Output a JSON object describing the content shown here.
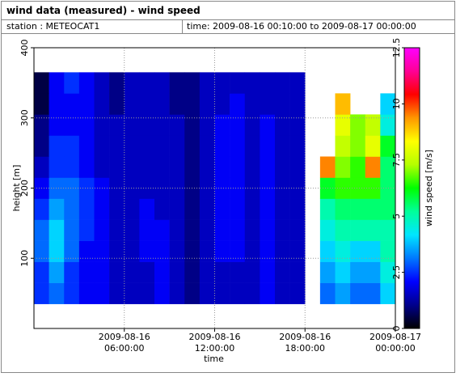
{
  "header": {
    "title": "wind data (measured) - wind speed",
    "station": "station : METEOCAT1",
    "time": "time: 2009-08-16 00:10:00 to 2009-08-17 00:00:00"
  },
  "chart_data": {
    "type": "heatmap",
    "x_label": "time",
    "y_label": "height [m]",
    "colorbar_label": "wind speed [m/s]",
    "x": [
      "2009-08-16 00:00:00",
      "2009-08-16 01:00:00",
      "2009-08-16 02:00:00",
      "2009-08-16 03:00:00",
      "2009-08-16 04:00:00",
      "2009-08-16 05:00:00",
      "2009-08-16 06:00:00",
      "2009-08-16 07:00:00",
      "2009-08-16 08:00:00",
      "2009-08-16 09:00:00",
      "2009-08-16 10:00:00",
      "2009-08-16 11:00:00",
      "2009-08-16 12:00:00",
      "2009-08-16 13:00:00",
      "2009-08-16 14:00:00",
      "2009-08-16 15:00:00",
      "2009-08-16 16:00:00",
      "2009-08-16 17:00:00",
      "2009-08-16 18:00:00",
      "2009-08-16 19:00:00",
      "2009-08-16 20:00:00",
      "2009-08-16 21:00:00",
      "2009-08-16 22:00:00",
      "2009-08-16 23:00:00"
    ],
    "y": [
      50,
      80,
      110,
      140,
      170,
      200,
      230,
      260,
      290,
      320,
      350
    ],
    "z": [
      [
        2.5,
        3,
        2.5,
        2,
        2,
        1.5,
        1.5,
        1.5,
        2,
        1.5,
        1,
        1.5,
        1.5,
        1.5,
        1.5,
        2,
        1.5,
        1.5,
        null,
        3,
        3.5,
        3,
        3,
        4
      ],
      [
        2.5,
        3.5,
        2.5,
        2,
        2,
        1.5,
        1.5,
        1.5,
        2,
        1.5,
        1,
        1.5,
        1.5,
        1.5,
        1.5,
        2,
        1.5,
        1.5,
        null,
        3.5,
        4,
        3.5,
        3.5,
        4.5
      ],
      [
        3,
        4,
        3,
        2,
        2,
        1.5,
        1.5,
        2,
        2,
        1.5,
        1,
        1.5,
        2,
        2,
        1.5,
        2,
        1.5,
        1.5,
        null,
        4,
        4.5,
        4,
        4,
        5
      ],
      [
        3,
        4,
        3,
        2.5,
        2,
        1.5,
        1.5,
        2,
        2,
        1.5,
        1,
        1.5,
        2,
        2,
        1.5,
        2,
        1.5,
        1.5,
        null,
        4.5,
        5,
        5,
        5,
        5
      ],
      [
        2.5,
        3.5,
        3,
        2.5,
        2,
        1.5,
        1.5,
        2,
        1.5,
        1.5,
        1,
        1.5,
        2,
        2,
        1.5,
        2,
        1.5,
        1.5,
        null,
        5,
        5.5,
        5.5,
        5.5,
        5.5
      ],
      [
        2,
        3,
        3,
        2.5,
        2,
        1.5,
        1.5,
        1.5,
        1.5,
        1.5,
        1,
        1.5,
        2,
        2,
        1.5,
        2,
        1.5,
        1.5,
        null,
        6,
        6.5,
        6.5,
        6.5,
        5.5
      ],
      [
        1.5,
        2.5,
        2.5,
        2,
        1.5,
        1.5,
        1.5,
        1.5,
        1.5,
        1.5,
        1,
        1.5,
        2,
        2,
        1.5,
        2,
        1.5,
        1.5,
        null,
        9.5,
        7,
        6.5,
        9.5,
        5.5
      ],
      [
        1,
        2.5,
        2.5,
        2,
        1.5,
        1.5,
        1.5,
        1.5,
        1.5,
        1.5,
        1,
        1.5,
        2,
        2,
        1.5,
        2,
        1.5,
        1.5,
        null,
        null,
        7.5,
        7,
        8,
        6
      ],
      [
        1,
        2,
        2,
        2,
        1.5,
        1.5,
        1.5,
        1.5,
        1.5,
        1.5,
        1,
        1.5,
        2,
        2,
        1.5,
        2,
        1.5,
        1.5,
        null,
        null,
        8,
        7,
        7.5,
        4.5
      ],
      [
        0.5,
        2,
        2,
        2,
        1.5,
        1,
        1.5,
        1.5,
        1.5,
        1,
        1,
        1.5,
        1.5,
        2,
        1.5,
        1.5,
        1.5,
        1.5,
        null,
        null,
        9,
        null,
        null,
        4
      ],
      [
        0.5,
        2,
        2.5,
        2,
        1.5,
        1,
        1.5,
        1.5,
        1.5,
        1,
        1,
        1.5,
        1.5,
        1.5,
        1.5,
        1.5,
        1.5,
        1.5,
        null,
        null,
        null,
        null,
        null,
        null
      ]
    ],
    "xlim": [
      "2009-08-16 00:00:00",
      "2009-08-17 00:00:00"
    ],
    "xticks": [
      "2009-08-16 06:00:00",
      "2009-08-16 12:00:00",
      "2009-08-16 18:00:00",
      "2009-08-17 00:00:00"
    ],
    "ylim": [
      0,
      400
    ],
    "yticks": [
      100,
      200,
      300,
      400
    ],
    "zlim": [
      0,
      12.5
    ],
    "zticks": [
      0,
      2.5,
      5,
      7.5,
      10,
      12.5
    ],
    "colorscale": [
      "#000000",
      "#00008c",
      "#0000ff",
      "#0078ff",
      "#00e6ff",
      "#00ff9a",
      "#00ff00",
      "#b4ff00",
      "#ffff00",
      "#ff9600",
      "#ff0000",
      "#ff0096",
      "#ff00ff"
    ],
    "grid": true
  }
}
